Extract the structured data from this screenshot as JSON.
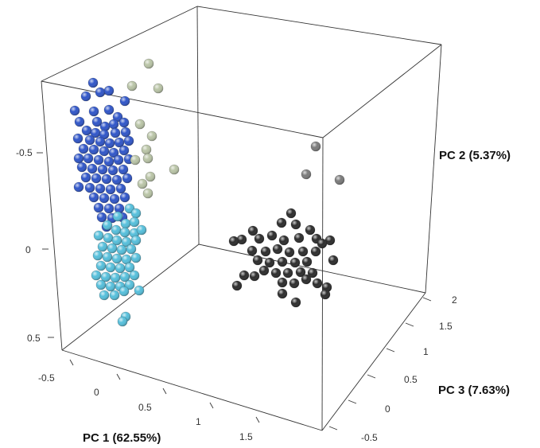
{
  "chart_data": {
    "type": "scatter",
    "title": "",
    "axes": {
      "pc1": {
        "label": "PC 1 (62.55%)",
        "ticks": [
          "-0.5",
          "0",
          "0.5",
          "1",
          "1.5"
        ]
      },
      "pc2": {
        "label": "PC 2 (5.37%)",
        "ticks": [
          "-0.5",
          "0",
          "0.5"
        ]
      },
      "pc3": {
        "label": "PC 3 (7.63%)",
        "ticks": [
          "-0.5",
          "0",
          "0.5",
          "1",
          "1.5",
          "2"
        ]
      }
    },
    "series": [
      {
        "color": "#2f55c8",
        "points": [
          [
            117,
            104
          ],
          [
            126,
            116
          ],
          [
            108,
            121
          ],
          [
            137,
            114
          ],
          [
            157,
            127
          ],
          [
            94,
            139
          ],
          [
            118,
            140
          ],
          [
            137,
            138
          ],
          [
            148,
            147
          ],
          [
            100,
            153
          ],
          [
            122,
            153
          ],
          [
            132,
            159
          ],
          [
            143,
            156
          ],
          [
            156,
            154
          ],
          [
            109,
            164
          ],
          [
            120,
            167
          ],
          [
            131,
            169
          ],
          [
            145,
            167
          ],
          [
            158,
            166
          ],
          [
            98,
            174
          ],
          [
            113,
            176
          ],
          [
            126,
            178
          ],
          [
            138,
            180
          ],
          [
            150,
            179
          ],
          [
            162,
            177
          ],
          [
            105,
            187
          ],
          [
            118,
            188
          ],
          [
            131,
            190
          ],
          [
            143,
            192
          ],
          [
            156,
            189
          ],
          [
            99,
            199
          ],
          [
            111,
            199
          ],
          [
            124,
            201
          ],
          [
            137,
            203
          ],
          [
            149,
            201
          ],
          [
            162,
            200
          ],
          [
            103,
            210
          ],
          [
            116,
            212
          ],
          [
            129,
            213
          ],
          [
            142,
            214
          ],
          [
            155,
            213
          ],
          [
            108,
            223
          ],
          [
            121,
            224
          ],
          [
            134,
            225
          ],
          [
            147,
            226
          ],
          [
            160,
            224
          ],
          [
            99,
            235
          ],
          [
            113,
            236
          ],
          [
            126,
            237
          ],
          [
            139,
            238
          ],
          [
            152,
            237
          ],
          [
            118,
            248
          ],
          [
            131,
            249
          ],
          [
            144,
            250
          ],
          [
            157,
            248
          ],
          [
            124,
            261
          ],
          [
            137,
            262
          ],
          [
            150,
            262
          ],
          [
            128,
            273
          ],
          [
            141,
            274
          ],
          [
            154,
            273
          ],
          [
            134,
            285
          ]
        ]
      },
      {
        "color": "#55bfdb",
        "points": [
          [
            163,
            262
          ],
          [
            171,
            268
          ],
          [
            148,
            272
          ],
          [
            158,
            281
          ],
          [
            169,
            279
          ],
          [
            135,
            283
          ],
          [
            146,
            289
          ],
          [
            157,
            292
          ],
          [
            169,
            293
          ],
          [
            178,
            289
          ],
          [
            124,
            296
          ],
          [
            136,
            299
          ],
          [
            147,
            302
          ],
          [
            159,
            304
          ],
          [
            171,
            302
          ],
          [
            129,
            310
          ],
          [
            141,
            312
          ],
          [
            153,
            314
          ],
          [
            165,
            313
          ],
          [
            123,
            321
          ],
          [
            135,
            323
          ],
          [
            147,
            325
          ],
          [
            159,
            326
          ],
          [
            171,
            324
          ],
          [
            127,
            334
          ],
          [
            139,
            336
          ],
          [
            151,
            337
          ],
          [
            163,
            336
          ],
          [
            121,
            346
          ],
          [
            133,
            348
          ],
          [
            145,
            349
          ],
          [
            157,
            348
          ],
          [
            169,
            346
          ],
          [
            127,
            358
          ],
          [
            139,
            360
          ],
          [
            151,
            360
          ],
          [
            163,
            358
          ],
          [
            175,
            365
          ],
          [
            131,
            371
          ],
          [
            144,
            371
          ],
          [
            156,
            366
          ],
          [
            158,
            398
          ],
          [
            154,
            404
          ]
        ]
      },
      {
        "color": "#b9c4a6",
        "points": [
          [
            187,
            80
          ],
          [
            199,
            111
          ],
          [
            166,
            108
          ],
          [
            176,
            156
          ],
          [
            191,
            171
          ],
          [
            184,
            188
          ],
          [
            170,
            201
          ],
          [
            186,
            199
          ],
          [
            219,
            213
          ],
          [
            189,
            222
          ],
          [
            179,
            231
          ],
          [
            186,
            243
          ]
        ]
      },
      {
        "color": "#2b2b2b",
        "points": [
          [
            366,
            268
          ],
          [
            354,
            280
          ],
          [
            372,
            282
          ],
          [
            390,
            289
          ],
          [
            304,
            301
          ],
          [
            294,
            303
          ],
          [
            318,
            290
          ],
          [
            326,
            300
          ],
          [
            342,
            296
          ],
          [
            357,
            302
          ],
          [
            376,
            299
          ],
          [
            398,
            300
          ],
          [
            415,
            302
          ],
          [
            405,
            306
          ],
          [
            317,
            315
          ],
          [
            334,
            316
          ],
          [
            349,
            313
          ],
          [
            364,
            317
          ],
          [
            381,
            316
          ],
          [
            397,
            316
          ],
          [
            324,
            327
          ],
          [
            339,
            330
          ],
          [
            355,
            329
          ],
          [
            371,
            330
          ],
          [
            386,
            329
          ],
          [
            419,
            327
          ],
          [
            332,
            340
          ],
          [
            347,
            343
          ],
          [
            362,
            343
          ],
          [
            378,
            342
          ],
          [
            393,
            343
          ],
          [
            307,
            346
          ],
          [
            320,
            347
          ],
          [
            355,
            355
          ],
          [
            370,
            356
          ],
          [
            385,
            351
          ],
          [
            399,
            356
          ],
          [
            298,
            359
          ],
          [
            355,
            369
          ],
          [
            372,
            380
          ],
          [
            411,
            361
          ],
          [
            409,
            370
          ]
        ]
      },
      {
        "color": "#7a7a7a",
        "points": [
          [
            397,
            184
          ],
          [
            385,
            219
          ],
          [
            427,
            226
          ]
        ]
      }
    ]
  }
}
